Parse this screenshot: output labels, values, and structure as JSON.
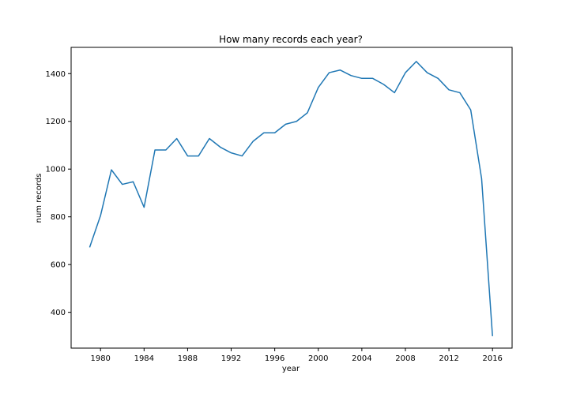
{
  "chart_data": {
    "type": "line",
    "title": "How many records each year?",
    "xlabel": "year",
    "ylabel": "num records",
    "xlim": [
      1977.3,
      2017.8
    ],
    "ylim": [
      250,
      1510
    ],
    "grid": false,
    "x_ticks": [
      1980,
      1984,
      1988,
      1992,
      1996,
      2000,
      2004,
      2008,
      2012,
      2016
    ],
    "y_ticks": [
      400,
      600,
      800,
      1000,
      1200,
      1400
    ],
    "series": [
      {
        "color": "#1f77b4",
        "x": [
          1979,
          1980,
          1981,
          1982,
          1983,
          1984,
          1985,
          1986,
          1987,
          1988,
          1989,
          1990,
          1991,
          1992,
          1993,
          1994,
          1995,
          1996,
          1997,
          1998,
          1999,
          2000,
          2001,
          2002,
          2003,
          2004,
          2005,
          2006,
          2007,
          2008,
          2009,
          2010,
          2011,
          2012,
          2013,
          2014,
          2015,
          2016
        ],
        "values": [
          672,
          805,
          997,
          936,
          947,
          840,
          1080,
          1080,
          1128,
          1055,
          1055,
          1128,
          1092,
          1068,
          1055,
          1116,
          1152,
          1152,
          1188,
          1200,
          1236,
          1342,
          1404,
          1415,
          1392,
          1380,
          1380,
          1355,
          1320,
          1404,
          1451,
          1404,
          1380,
          1332,
          1320,
          1248,
          960,
          300
        ]
      }
    ]
  }
}
